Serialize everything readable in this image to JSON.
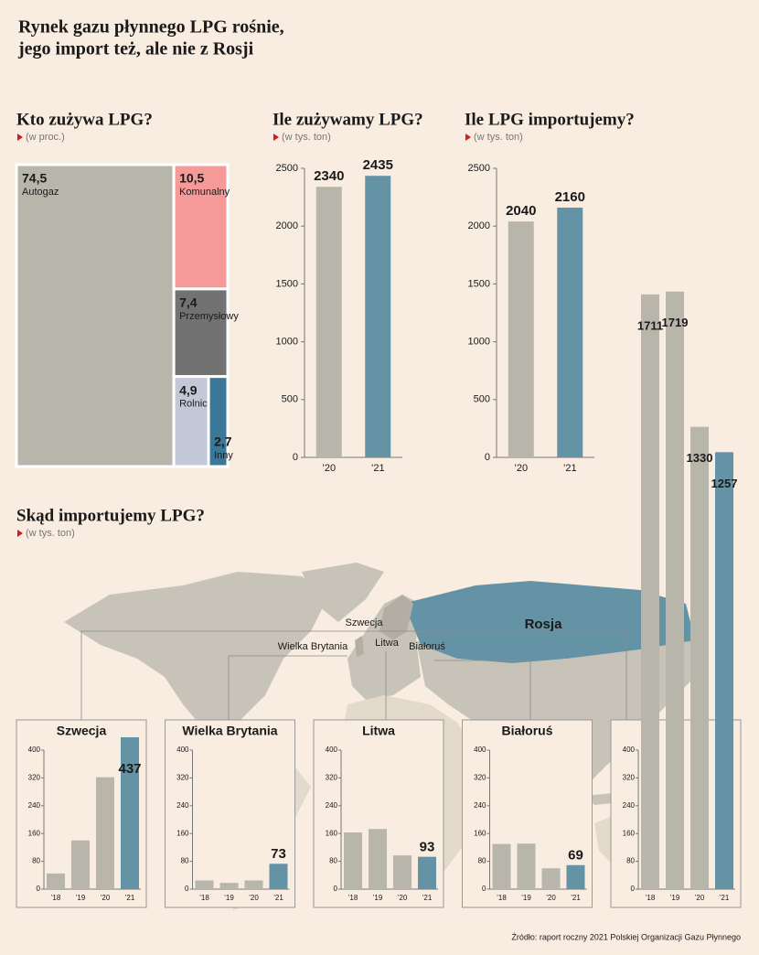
{
  "title": [
    "Rynek gazu płynnego LPG rośnie,",
    "jego import też, ale nie z Rosji"
  ],
  "source": "Źródło: raport roczny 2021 Polskiej Organizacji Gazu Płynnego",
  "chart_data": [
    {
      "type": "treemap",
      "title": "Kto zużywa LPG?",
      "subtitle": "(w proc.)",
      "categories": [
        "Autogaz",
        "Komunalny",
        "Przemysłowy",
        "Rolniczy",
        "Inny"
      ],
      "values": [
        74.5,
        10.5,
        7.4,
        4.9,
        2.7
      ],
      "value_labels": [
        "74,5",
        "10,5",
        "7,4",
        "4,9",
        "2,7"
      ],
      "colors": [
        "#b8b5ab",
        "#f59a98",
        "#727272",
        "#c3c8d6",
        "#3b7898"
      ]
    },
    {
      "type": "bar",
      "title": "Ile zużywamy LPG?",
      "subtitle": "(w tys. ton)",
      "categories": [
        "’20",
        "’21"
      ],
      "values": [
        2340,
        2435
      ],
      "colors": [
        "#b8b5ab",
        "#6593a6"
      ],
      "ylim": [
        0,
        2500
      ],
      "yticks": [
        0,
        500,
        1000,
        1500,
        2000,
        2500
      ]
    },
    {
      "type": "bar",
      "title": "Ile LPG importujemy?",
      "subtitle": "(w tys. ton)",
      "categories": [
        "’20",
        "’21"
      ],
      "values": [
        2040,
        2160
      ],
      "colors": [
        "#b8b5ab",
        "#6593a6"
      ],
      "ylim": [
        0,
        2500
      ],
      "yticks": [
        0,
        500,
        1000,
        1500,
        2000,
        2500
      ]
    },
    {
      "type": "small_multiples",
      "title": "Skąd importujemy LPG?",
      "subtitle": "(w tys. ton)",
      "categories": [
        "’18",
        "’19",
        "’20",
        "’21"
      ],
      "colors": [
        "#b8b5ab",
        "#b8b5ab",
        "#b8b5ab",
        "#6593a6"
      ],
      "ylim": [
        0,
        400
      ],
      "yticks": [
        0,
        80,
        160,
        240,
        320,
        400
      ],
      "panels": [
        {
          "name": "Szwecja",
          "values": [
            45,
            140,
            322,
            437
          ],
          "labels": "last",
          "show_title": true
        },
        {
          "name": "Wielka Brytania",
          "values": [
            25,
            18,
            25,
            73
          ],
          "labels": "last",
          "show_title": true
        },
        {
          "name": "Litwa",
          "values": [
            163,
            173,
            97,
            93
          ],
          "labels": "last",
          "show_title": true
        },
        {
          "name": "Białoruś",
          "values": [
            130,
            131,
            60,
            69
          ],
          "labels": "last",
          "show_title": true
        },
        {
          "name": "Rosja",
          "values": [
            1711,
            1719,
            1330,
            1257
          ],
          "labels": "all",
          "show_title": false
        }
      ]
    }
  ]
}
